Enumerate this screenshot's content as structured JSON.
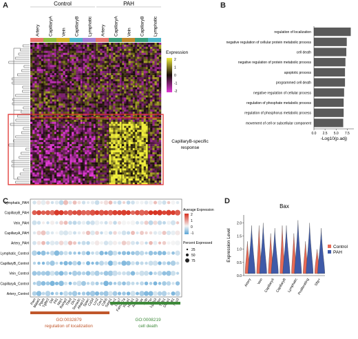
{
  "panels": {
    "a": "A",
    "b": "B",
    "c": "C",
    "d": "D"
  },
  "panelA": {
    "group_labels": [
      "Control",
      "PAH"
    ],
    "column_labels": [
      "Artery",
      "CapillaryA",
      "Vein",
      "CapillaryB",
      "Lymphatic",
      "Artery",
      "CapillaryA",
      "Vein",
      "CapillaryB",
      "Lymphatic"
    ],
    "column_colors": [
      "#e8766d",
      "#8cbf3f",
      "#d6b12a",
      "#4cb6c9",
      "#a27fd6",
      "#e8766d",
      "#3aa07d",
      "#c08a2e",
      "#3aa07d",
      "#4cb6c9"
    ],
    "legend_title": "Expression",
    "legend_ticks": [
      "2",
      "1",
      "0",
      "-1",
      "-2"
    ],
    "annotation": "CapillaryB-specific response",
    "colors": {
      "high": "#f0ee3a",
      "mid": "#1a0d0a",
      "low": "#e238d6",
      "box": "#e0322f"
    }
  },
  "chart_data": [
    {
      "type": "bar",
      "orientation": "horizontal",
      "categories": [
        "regulation of localization",
        "negative regulation of cellular protein metabolic process",
        "cell death",
        "negative regulation of protein metabolic process",
        "apoptotic process",
        "programmed cell death",
        "negative regulation of cellular process",
        "regulation of phosphate metabolic process",
        "regulation of phosphorus metabolic process",
        "movement of cell or subcellular component"
      ],
      "values": [
        8.3,
        7.4,
        7.3,
        7.1,
        7.0,
        7.0,
        6.8,
        6.7,
        6.7,
        6.6
      ],
      "xlabel": "-Log10(p.adj)",
      "xticks": [
        "0.0",
        "2.5",
        "5.0",
        "7.5"
      ],
      "xlim": [
        0,
        9
      ],
      "color": "#5a5a5a"
    },
    {
      "type": "scatter",
      "rows": [
        "Lymphatic_PAH",
        "CapillaryB_PAH",
        "Vein_PAH",
        "CapillaryA_PAH",
        "Artery_PAH",
        "Lymphatic_Control",
        "CapillaryB_Control",
        "Vein_Control",
        "CapillaryA_Control",
        "Artery_Control"
      ],
      "genes": [
        "Pam",
        "Malat1",
        "Ptprb",
        "Tgfbr2",
        "Dst",
        "Flt1",
        "Nrp1",
        "Ramp2",
        "Thbd",
        "Dlc1",
        "Sema3c",
        "Akap12",
        "Sparc",
        "Cd34",
        "Lcn2",
        "Cav1",
        "Cdh5",
        "Sash1",
        "Ccn1",
        "Lmo7",
        "Fam107a",
        "Rasa1",
        "Hspb1",
        "Anxa2",
        "Bax",
        "Actb",
        "Ttn",
        "Lgals3",
        "Vim",
        "Tgfb1",
        "Dusp1",
        "Mt1",
        "Nos3"
      ],
      "legend_color_title": "Average Expression",
      "legend_color_ticks": [
        "2",
        "1",
        "0",
        "-1"
      ],
      "legend_size_title": "Percent Expressed",
      "legend_size_ticks": [
        "25",
        "50",
        "75"
      ],
      "go_terms": [
        {
          "id": "GO:0032879",
          "name": "regulation of localization",
          "color": "#c0572b"
        },
        {
          "id": "GO:0008219",
          "name": "cell death",
          "color": "#3e8a3a"
        }
      ],
      "colors": {
        "high": "#d7301f",
        "mid": "#f4f4f4",
        "low": "#5aa4d6"
      }
    },
    {
      "type": "violin",
      "title": "Bax",
      "ylabel": "Expression Level",
      "yticks": [
        "0.0",
        "0.5",
        "1.0",
        "1.5",
        "2.0"
      ],
      "ylim": [
        0,
        2.3
      ],
      "categories": [
        "Artery",
        "Vein",
        "CapillaryA",
        "CapillaryB",
        "Lymphatic",
        "Proliferating",
        "Sftp+"
      ],
      "series": [
        {
          "name": "Control",
          "color": "#e86a55"
        },
        {
          "name": "PAH",
          "color": "#3f5aa8"
        }
      ],
      "max_values": {
        "Control": [
          1.3,
          1.9,
          1.6,
          1.9,
          1.6,
          1.3,
          1.0
        ],
        "PAH": [
          1.9,
          2.0,
          1.8,
          1.9,
          2.1,
          2.0,
          1.8
        ]
      }
    }
  ]
}
